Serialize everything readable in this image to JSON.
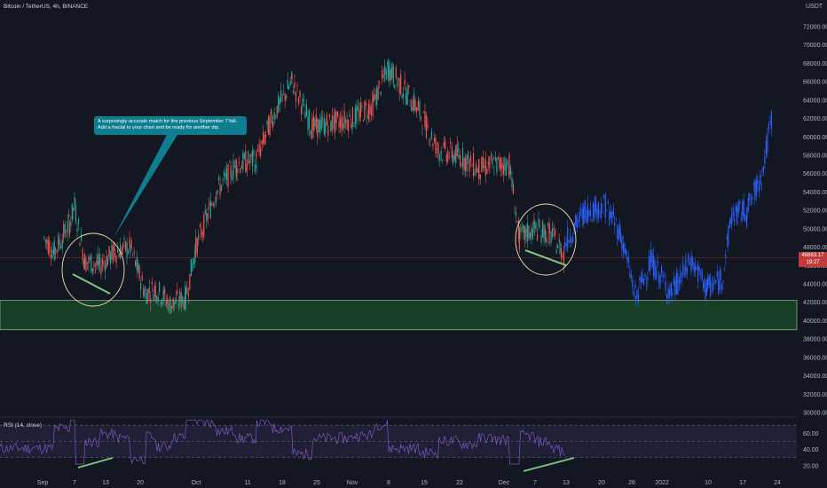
{
  "header": {
    "symbol_title": "Bitcoin / TetherUS, 4h, BINANCE",
    "currency": "USDT"
  },
  "annotation": {
    "line1": "A surprisingly accurate match for the previous September 7 fall.",
    "line2": "Add a fractal to your chart and be ready for another dip."
  },
  "price_tag": {
    "value": "46863.17",
    "countdown": "19:27"
  },
  "rsi_panel": {
    "title": "RSI (14, close)"
  },
  "colors": {
    "background": "#131722",
    "up_candle": "#26a69a",
    "down_candle": "#ef5350",
    "fractal_projection": "#2962ff",
    "support_zone": "#1e4d2b",
    "rsi_line": "#7e57c2",
    "divergence_line": "#4caf50",
    "annotation_bg": "#0f7d90",
    "price_tag_bg": "#c23b3b"
  },
  "chart_data": {
    "type": "candlestick",
    "title": "Bitcoin / TetherUS, 4h, BINANCE",
    "x_tick_labels": [
      "Sep",
      "7",
      "13",
      "20",
      "Oct",
      "11",
      "18",
      "25",
      "Nov",
      "8",
      "15",
      "22",
      "Dec",
      "7",
      "13",
      "20",
      "26",
      "2022",
      "10",
      "17",
      "24"
    ],
    "y_tick_labels": [
      "72000.00",
      "70000.00",
      "68000.00",
      "66000.00",
      "64000.00",
      "62000.00",
      "60000.00",
      "58000.00",
      "56000.00",
      "54000.00",
      "52000.00",
      "50000.00",
      "48000.00",
      "46000.00",
      "44000.00",
      "42000.00",
      "40000.00",
      "38000.00",
      "36000.00",
      "34000.00",
      "32000.00",
      "30000.00"
    ],
    "ylim": [
      30000,
      73000
    ],
    "price_path": {
      "x": [
        "Sep 1",
        "Sep 3",
        "Sep 6",
        "Sep 7",
        "Sep 9",
        "Sep 12",
        "Sep 15",
        "Sep 18",
        "Sep 21",
        "Sep 23",
        "Sep 26",
        "Sep 29",
        "Oct 1",
        "Oct 5",
        "Oct 9",
        "Oct 13",
        "Oct 16",
        "Oct 20",
        "Oct 24",
        "Oct 28",
        "Nov 1",
        "Nov 5",
        "Nov 8",
        "Nov 10",
        "Nov 14",
        "Nov 18",
        "Nov 22",
        "Nov 26",
        "Nov 29",
        "Dec 2",
        "Dec 4",
        "Dec 7",
        "Dec 10",
        "Dec 12",
        "Dec 13"
      ],
      "y": [
        49000,
        47500,
        50500,
        52500,
        46500,
        46000,
        47500,
        48000,
        43000,
        43500,
        41800,
        42500,
        48000,
        54000,
        57000,
        57500,
        62000,
        66000,
        61000,
        61500,
        62000,
        63500,
        67500,
        66000,
        63000,
        58500,
        58000,
        56500,
        57000,
        57000,
        49000,
        50000,
        49500,
        48000,
        46900
      ]
    },
    "fractal_projection": {
      "x": [
        "Dec 13",
        "Dec 17",
        "Dec 21",
        "Dec 24",
        "Dec 27",
        "Dec 30",
        "Jan 3",
        "Jan 7",
        "Jan 10",
        "Jan 13",
        "Jan 15",
        "Jan 18",
        "Jan 21",
        "Jan 23"
      ],
      "y": [
        48500,
        52000,
        52500,
        49500,
        42500,
        46500,
        43000,
        46500,
        43500,
        44500,
        51500,
        52000,
        56000,
        62500
      ]
    },
    "support_zone": {
      "low": 39000,
      "high": 42200
    },
    "current_price": 46863.17,
    "rsi": {
      "title": "RSI (14, close)",
      "y_tick_labels": [
        "60.00",
        "40.00",
        "20.00"
      ],
      "upper_band": 70,
      "middle_band": 50,
      "lower_band": 30,
      "ylim": [
        10,
        80
      ]
    },
    "legend": "none",
    "grid": false
  }
}
